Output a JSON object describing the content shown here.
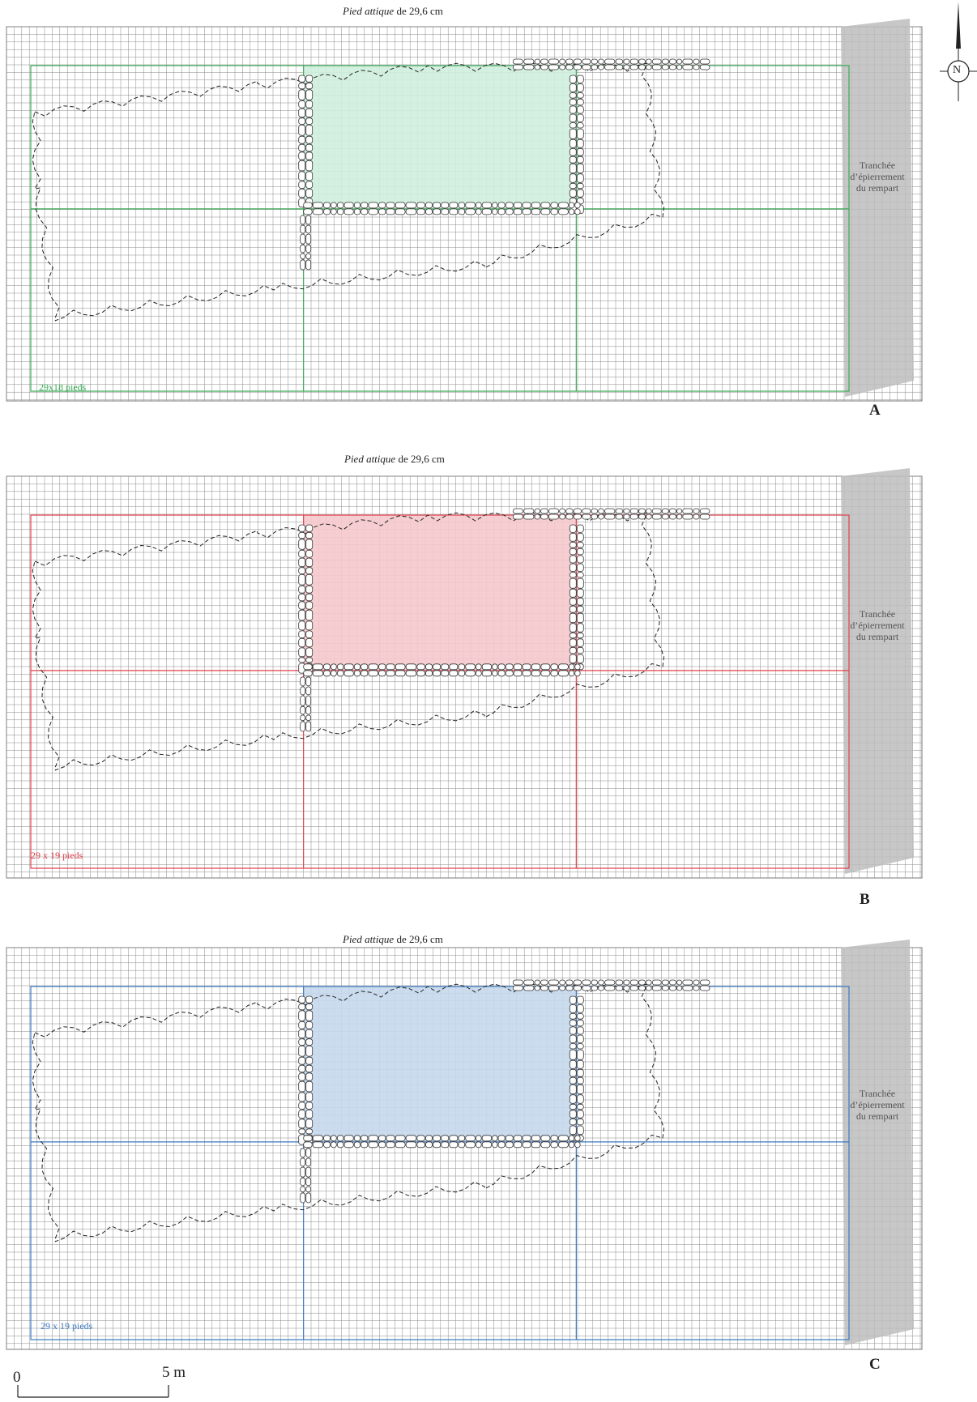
{
  "north": {
    "label": "N"
  },
  "panels": [
    {
      "id": "A",
      "title_unit": "Pied attique",
      "title_rest": " de 29,6 cm",
      "letter": "A",
      "trench": [
        "Tranchée",
        "d’épierrement",
        "du rempart"
      ],
      "grid_label": "29x18 pieds",
      "color": "#3aaa55",
      "fill": "#cfeedd"
    },
    {
      "id": "B",
      "title_unit": "Pied attique",
      "title_rest": " de 29,6 cm",
      "letter": "B",
      "trench": [
        "Tranchée",
        "d’épierrement",
        "du rempart"
      ],
      "grid_label": "29 x 19 pieds",
      "color": "#e0404a",
      "fill": "#f5c9cc"
    },
    {
      "id": "C",
      "title_unit": "Pied attique",
      "title_rest": " de 29,6 cm",
      "letter": "C",
      "trench": [
        "Tranchée",
        "d’épierrement",
        "du rempart"
      ],
      "grid_label": "29 x 19 pieds",
      "color": "#3a78c0",
      "fill": "#c5d8ec"
    }
  ],
  "scale": {
    "zero": "0",
    "end": "5 m"
  }
}
